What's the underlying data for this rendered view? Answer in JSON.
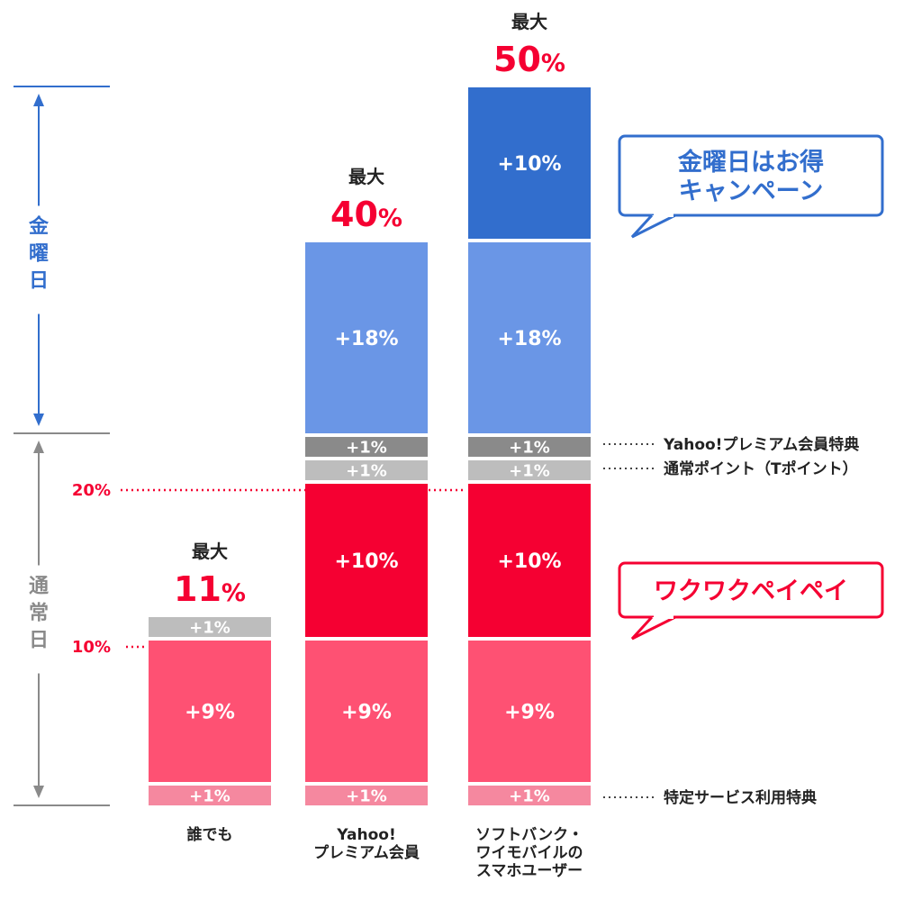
{
  "chart_data": {
    "type": "bar",
    "stacked": true,
    "categories": [
      [
        "誰でも"
      ],
      [
        "Yahoo!",
        "プレミアム会員"
      ],
      [
        "ソフトバンク・",
        "ワイモバイルの",
        "スマホユーザー"
      ]
    ],
    "series": [
      {
        "name": "特定サービス利用特典",
        "label": "+1%",
        "values": [
          1,
          1,
          1
        ],
        "color": "#f5889f"
      },
      {
        "label": "+9%",
        "values": [
          9,
          9,
          9
        ],
        "color": "#fe5173"
      },
      {
        "label": "+10%",
        "values": [
          0,
          10,
          10
        ],
        "color": "#f50032"
      },
      {
        "name": "通常ポイント（Tポイント）",
        "label": "+1%",
        "values": [
          1,
          1,
          1
        ],
        "color": "#bdbdbd"
      },
      {
        "name": "Yahoo!プレミアム会員特典",
        "label": "+1%",
        "values": [
          0,
          1,
          1
        ],
        "color": "#8a8a8a"
      },
      {
        "label": "+18%",
        "values": [
          0,
          18,
          18
        ],
        "color": "#6a96e6"
      },
      {
        "label": "+10%",
        "values": [
          0,
          0,
          10
        ],
        "color": "#326ecd"
      }
    ],
    "totals": [
      {
        "prefix": "最大",
        "value": "11",
        "unit": "%"
      },
      {
        "prefix": "最大",
        "value": "40",
        "unit": "%"
      },
      {
        "prefix": "最大",
        "value": "50",
        "unit": "%"
      }
    ],
    "reference_lines": [
      {
        "label": "10%",
        "value": 10
      },
      {
        "label": "20%",
        "value": 20
      }
    ],
    "range_labels": {
      "friday": [
        "金",
        "曜",
        "日"
      ],
      "normal": [
        "通",
        "常",
        "日"
      ]
    },
    "callouts": {
      "friday": [
        "金曜日はお得",
        "キャンペーン"
      ],
      "normal": [
        "ワクワクペイペイ"
      ]
    },
    "colors": {
      "friday_accent": "#326ecd",
      "normal_accent": "#f50032",
      "axis_gray": "#8a8a8a",
      "total_red": "#f50032"
    }
  }
}
